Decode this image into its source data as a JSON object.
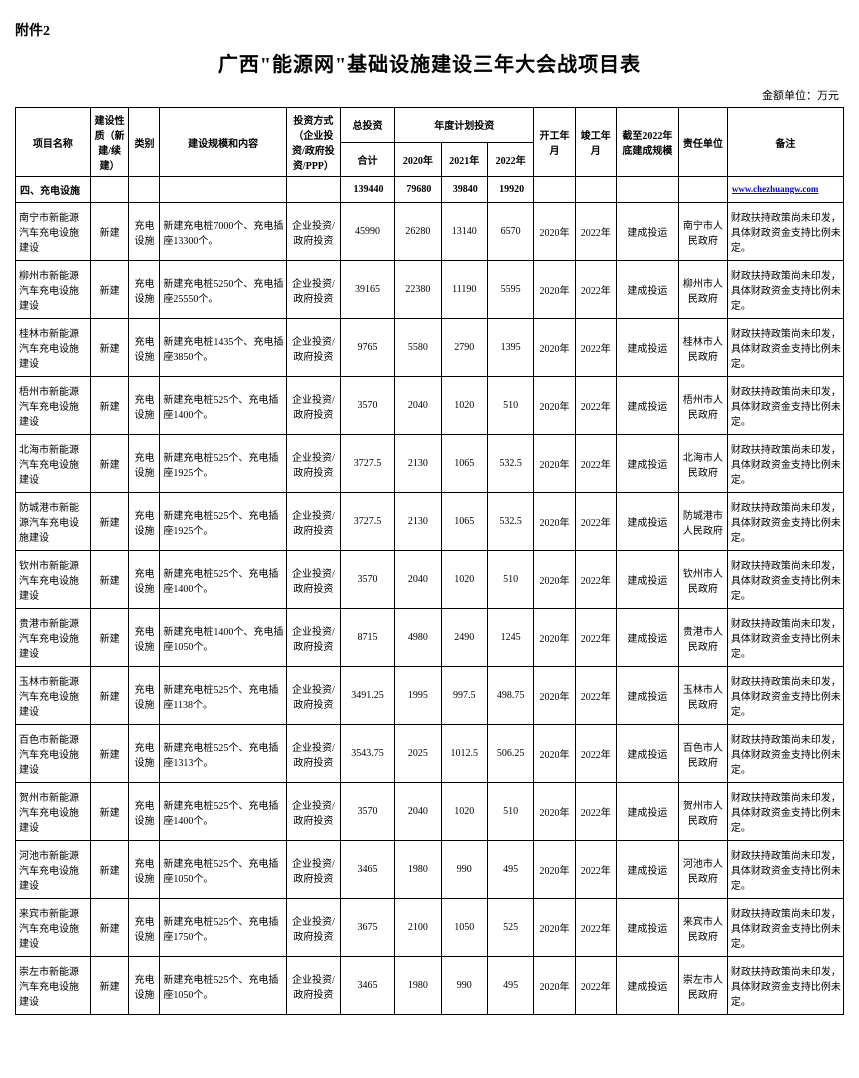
{
  "attachment_label": "附件2",
  "main_title": "广西\"能源网\"基础设施建设三年大会战项目表",
  "unit_label": "金额单位：万元",
  "headers": {
    "project_name": "项目名称",
    "nature": "建设性质（新建/续建）",
    "type": "类别",
    "content": "建设规模和内容",
    "invest_method": "投资方式（企业投资/政府投资/PPP）",
    "total_invest": "总投资",
    "annual_plan": "年度计划投资",
    "sum": "合计",
    "y2020": "2020年",
    "y2021": "2021年",
    "y2022": "2022年",
    "start": "开工年月",
    "end": "竣工年月",
    "scale_2022": "截至2022年底建成规模",
    "resp_unit": "责任单位",
    "remark": "备注"
  },
  "section": {
    "label": "四、充电设施",
    "total": "139440",
    "y2020": "79680",
    "y2021": "39840",
    "y2022": "19920",
    "link": "www.chezhuangw.com"
  },
  "common": {
    "nature": "新建",
    "type": "充电设施",
    "invest_method": "企业投资/政府投资",
    "start": "2020年",
    "end": "2022年",
    "scale": "建成投运",
    "remark": "财政扶持政策尚未印发，具体财政资金支持比例未定。"
  },
  "rows": [
    {
      "name": "南宁市新能源汽车充电设施建设",
      "content": "新建充电桩7000个、充电插座13300个。",
      "total": "45990",
      "y2020": "26280",
      "y2021": "13140",
      "y2022": "6570",
      "unit": "南宁市人民政府"
    },
    {
      "name": "柳州市新能源汽车充电设施建设",
      "content": "新建充电桩5250个、充电插座25550个。",
      "total": "39165",
      "y2020": "22380",
      "y2021": "11190",
      "y2022": "5595",
      "unit": "柳州市人民政府"
    },
    {
      "name": "桂林市新能源汽车充电设施建设",
      "content": "新建充电桩1435个、充电插座3850个。",
      "total": "9765",
      "y2020": "5580",
      "y2021": "2790",
      "y2022": "1395",
      "unit": "桂林市人民政府"
    },
    {
      "name": "梧州市新能源汽车充电设施建设",
      "content": "新建充电桩525个、充电插座1400个。",
      "total": "3570",
      "y2020": "2040",
      "y2021": "1020",
      "y2022": "510",
      "unit": "梧州市人民政府"
    },
    {
      "name": "北海市新能源汽车充电设施建设",
      "content": "新建充电桩525个、充电插座1925个。",
      "total": "3727.5",
      "y2020": "2130",
      "y2021": "1065",
      "y2022": "532.5",
      "unit": "北海市人民政府"
    },
    {
      "name": "防城港市新能源汽车充电设施建设",
      "content": "新建充电桩525个、充电插座1925个。",
      "total": "3727.5",
      "y2020": "2130",
      "y2021": "1065",
      "y2022": "532.5",
      "unit": "防城港市人民政府"
    },
    {
      "name": "钦州市新能源汽车充电设施建设",
      "content": "新建充电桩525个、充电插座1400个。",
      "total": "3570",
      "y2020": "2040",
      "y2021": "1020",
      "y2022": "510",
      "unit": "钦州市人民政府"
    },
    {
      "name": "贵港市新能源汽车充电设施建设",
      "content": "新建充电桩1400个、充电插座1050个。",
      "total": "8715",
      "y2020": "4980",
      "y2021": "2490",
      "y2022": "1245",
      "unit": "贵港市人民政府"
    },
    {
      "name": "玉林市新能源汽车充电设施建设",
      "content": "新建充电桩525个、充电插座1138个。",
      "total": "3491.25",
      "y2020": "1995",
      "y2021": "997.5",
      "y2022": "498.75",
      "unit": "玉林市人民政府"
    },
    {
      "name": "百色市新能源汽车充电设施建设",
      "content": "新建充电桩525个、充电插座1313个。",
      "total": "3543.75",
      "y2020": "2025",
      "y2021": "1012.5",
      "y2022": "506.25",
      "unit": "百色市人民政府"
    },
    {
      "name": "贺州市新能源汽车充电设施建设",
      "content": "新建充电桩525个、充电插座1400个。",
      "total": "3570",
      "y2020": "2040",
      "y2021": "1020",
      "y2022": "510",
      "unit": "贺州市人民政府"
    },
    {
      "name": "河池市新能源汽车充电设施建设",
      "content": "新建充电桩525个、充电插座1050个。",
      "total": "3465",
      "y2020": "1980",
      "y2021": "990",
      "y2022": "495",
      "unit": "河池市人民政府"
    },
    {
      "name": "来宾市新能源汽车充电设施建设",
      "content": "新建充电桩525个、充电插座1750个。",
      "total": "3675",
      "y2020": "2100",
      "y2021": "1050",
      "y2022": "525",
      "unit": "来宾市人民政府"
    },
    {
      "name": "崇左市新能源汽车充电设施建设",
      "content": "新建充电桩525个、充电插座1050个。",
      "total": "3465",
      "y2020": "1980",
      "y2021": "990",
      "y2022": "495",
      "unit": "崇左市人民政府"
    }
  ]
}
